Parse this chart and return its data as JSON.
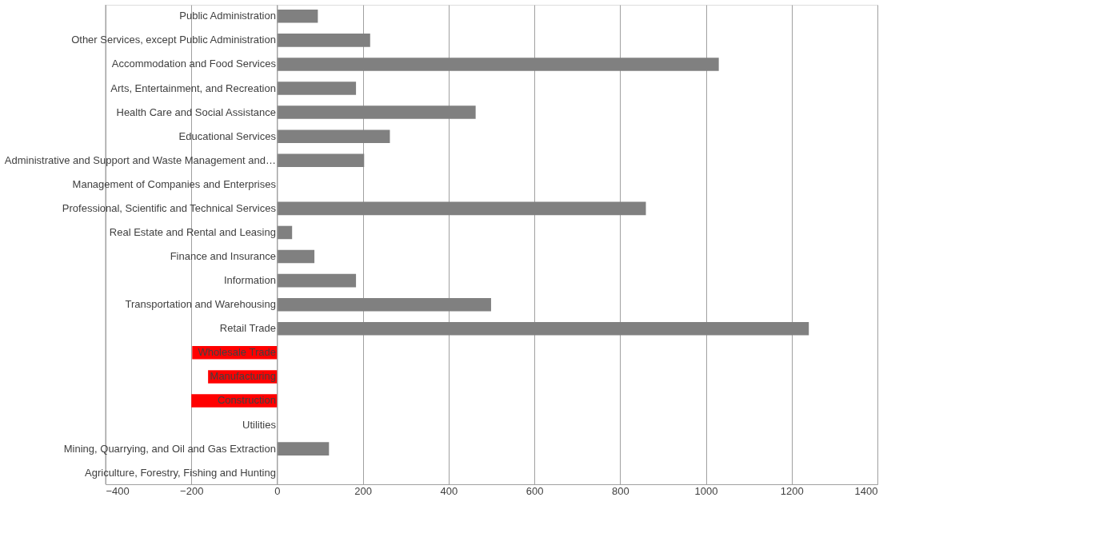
{
  "chart_data": {
    "type": "bar",
    "orientation": "horizontal",
    "categories": [
      "Public Administration",
      "Other Services, except Public Administration",
      "Accommodation and Food Services",
      "Arts, Entertainment, and Recreation",
      "Health Care and Social Assistance",
      "Educational Services",
      "Administrative and Support and Waste Management and…",
      "Management of Companies and Enterprises",
      "Professional, Scientific and Technical Services",
      "Real Estate and Rental and Leasing",
      "Finance and Insurance",
      "Information",
      "Transportation and Warehousing",
      "Retail Trade",
      "Wholesale Trade",
      "Manufacturing",
      "Construction",
      "Utilities",
      "Mining, Quarrying, and Oil and Gas Extraction",
      "Agriculture, Forestry, Fishing and Hunting"
    ],
    "values": [
      95,
      217,
      1030,
      184,
      463,
      263,
      203,
      0,
      860,
      35,
      87,
      184,
      499,
      1240,
      -198,
      -161,
      -200,
      0,
      121,
      0
    ],
    "colors": [
      "#808080",
      "#808080",
      "#808080",
      "#808080",
      "#808080",
      "#808080",
      "#808080",
      "#808080",
      "#808080",
      "#808080",
      "#808080",
      "#808080",
      "#808080",
      "#808080",
      "#ff0000",
      "#ff0000",
      "#ff0000",
      "#808080",
      "#808080",
      "#808080"
    ],
    "xlim": [
      -400,
      1400
    ],
    "xticks": [
      -400,
      -200,
      0,
      200,
      400,
      600,
      800,
      1000,
      1200,
      1400
    ],
    "grid": "x",
    "legend": false
  }
}
